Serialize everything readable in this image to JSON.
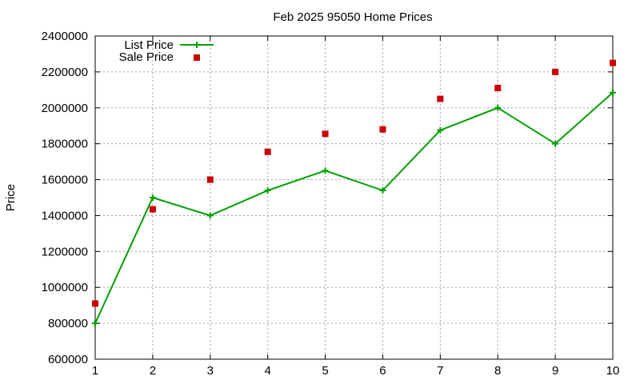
{
  "chart_data": {
    "type": "line",
    "title": "Feb 2025 95050 Home Prices",
    "xlabel": "",
    "ylabel": "Price",
    "xlim": [
      1,
      10
    ],
    "ylim": [
      600000,
      2400000
    ],
    "x_ticks": [
      1,
      2,
      3,
      4,
      5,
      6,
      7,
      8,
      9,
      10
    ],
    "y_ticks": [
      600000,
      800000,
      1000000,
      1200000,
      1400000,
      1600000,
      1800000,
      2000000,
      2200000,
      2400000
    ],
    "grid": true,
    "legend_position": "top-left",
    "series": [
      {
        "name": "List Price",
        "style": "line+plus",
        "color": "#00a000",
        "x": [
          1,
          2,
          3,
          4,
          5,
          6,
          7,
          8,
          9,
          10
        ],
        "values": [
          800000,
          1500000,
          1400000,
          1540000,
          1650000,
          1540000,
          1875000,
          2000000,
          1800000,
          2085000
        ]
      },
      {
        "name": "Sale Price",
        "style": "square",
        "color": "#cc0000",
        "x": [
          1,
          2,
          3,
          4,
          5,
          6,
          7,
          8,
          9,
          10
        ],
        "values": [
          910000,
          1435000,
          1600000,
          1755000,
          1855000,
          1880000,
          2050000,
          2110000,
          2200000,
          2250000
        ]
      }
    ]
  }
}
